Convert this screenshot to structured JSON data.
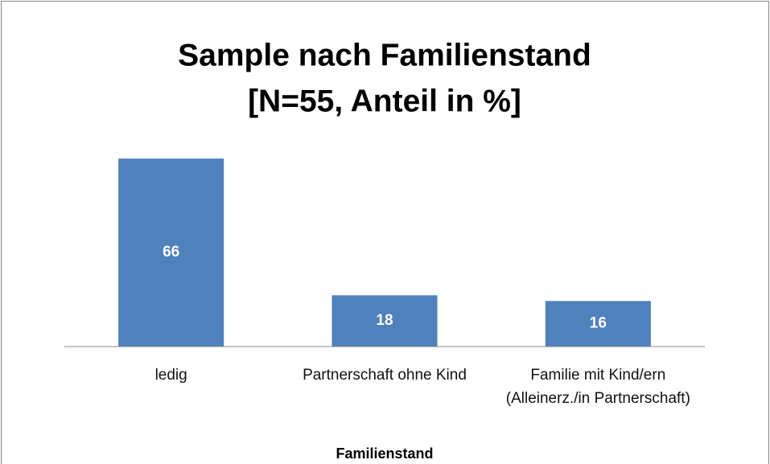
{
  "chart_data": {
    "type": "bar",
    "title": [
      "Sample nach Familienstand",
      "[N=55, Anteil in %]"
    ],
    "x_label": "Familienstand",
    "categories": [
      "ledig",
      "Partnerschaft ohne Kind",
      "Familie mit Kind/ern (Alleinerz./in Partnerschaft)"
    ],
    "values": [
      66,
      18,
      16
    ],
    "color": "#4f81bd",
    "ylim": [
      0,
      70
    ]
  }
}
